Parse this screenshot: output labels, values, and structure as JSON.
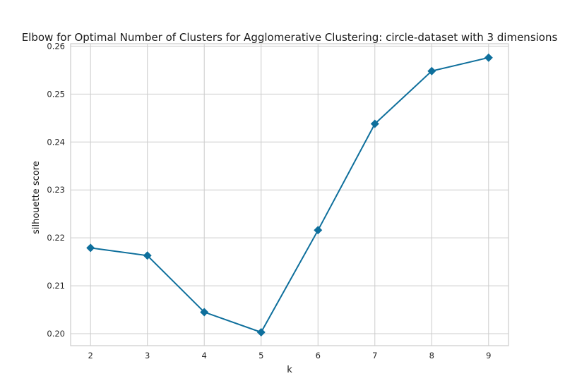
{
  "chart_data": {
    "type": "line",
    "title": "Elbow for Optimal Number of Clusters for Agglomerative Clustering: circle-dataset with 3 dimensions",
    "xlabel": "k",
    "ylabel": "silhouette score",
    "x": [
      2,
      3,
      4,
      5,
      6,
      7,
      8,
      9
    ],
    "series": [
      {
        "values": [
          0.2179,
          0.2163,
          0.2045,
          0.2003,
          0.2216,
          0.2438,
          0.2548,
          0.2576
        ]
      }
    ],
    "x_ticks": [
      2,
      3,
      4,
      5,
      6,
      7,
      8,
      9
    ],
    "y_ticks": [
      0.2,
      0.21,
      0.22,
      0.23,
      0.24,
      0.25,
      0.26
    ],
    "y_tick_labels": [
      "0.20",
      "0.21",
      "0.22",
      "0.23",
      "0.24",
      "0.25",
      "0.26"
    ],
    "xlim": [
      1.65,
      9.35
    ],
    "ylim": [
      0.1975,
      0.2605
    ],
    "grid": true,
    "line_color": "#0e6f9c",
    "marker": "diamond"
  }
}
